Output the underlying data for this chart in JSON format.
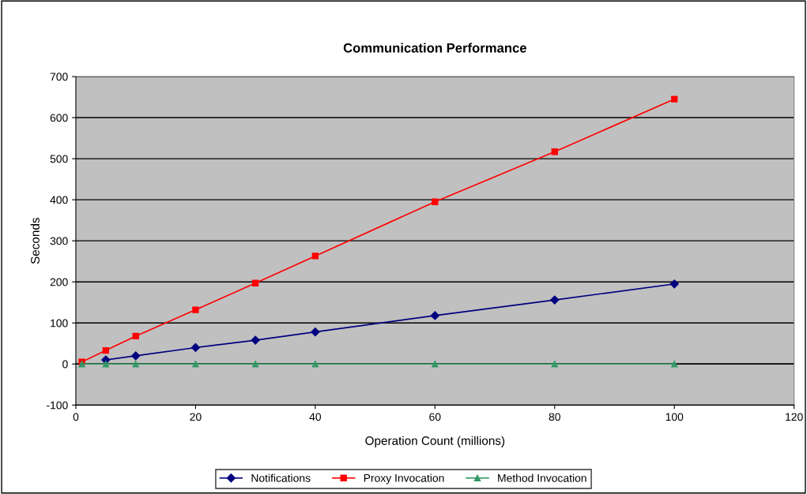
{
  "chart_data": {
    "type": "line",
    "title": "Communication Performance",
    "xlabel": "Operation Count (millions)",
    "ylabel": "Seconds",
    "x": [
      1,
      5,
      10,
      20,
      30,
      40,
      60,
      80,
      100
    ],
    "series": [
      {
        "name": "Notifications",
        "color": "#000080",
        "marker": "diamond",
        "values": [
          null,
          10,
          20,
          40,
          58,
          78,
          118,
          156,
          195
        ]
      },
      {
        "name": "Proxy Invocation",
        "color": "#ff0000",
        "marker": "square",
        "values": [
          5,
          33,
          68,
          132,
          197,
          263,
          395,
          517,
          645
        ]
      },
      {
        "name": "Method Invocation",
        "color": "#339966",
        "marker": "triangle",
        "values": [
          0,
          0,
          0,
          0,
          0,
          0,
          0,
          0,
          0
        ]
      }
    ],
    "xlim": [
      0,
      120
    ],
    "xticks": [
      0,
      20,
      40,
      60,
      80,
      100,
      120
    ],
    "ylim": [
      -100,
      700
    ],
    "yticks": [
      -100,
      0,
      100,
      200,
      300,
      400,
      500,
      600,
      700
    ],
    "grid": "y",
    "legend": "bottom"
  }
}
